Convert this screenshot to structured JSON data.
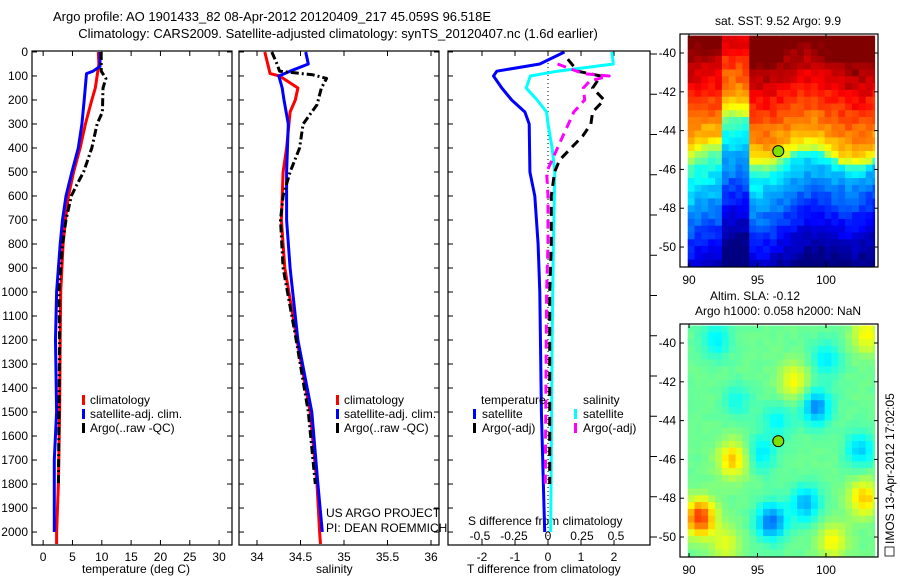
{
  "title": {
    "line1": "Argo profile: AO 1901433_82 08-Apr-2012 20120409_217 45.059S 96.518E",
    "line2": "Climatology: CARS2009. Satellite-adjusted climatology: synTS_20120407.nc (1.6d earlier)"
  },
  "credit": {
    "line1": "US ARGO PROJECT",
    "line2": "PI: DEAN ROEMMICH"
  },
  "stamp": "IMOS 13-Apr-2012 17:02:05",
  "colors": {
    "climatology": "#ff0000",
    "satellite": "#0000ff",
    "argo": "#000000",
    "sal_satellite": "#00ffff",
    "sal_argo": "#ff00ff",
    "marker": "#80e000"
  },
  "chart_data": [
    {
      "type": "line",
      "id": "temperature",
      "xlabel": "temperature (deg C)",
      "ylabel": "",
      "xlim": [
        -1.9,
        32.2
      ],
      "ylim": [
        2054,
        -4
      ],
      "xticks": [
        0,
        5,
        10,
        15,
        20,
        25,
        30
      ],
      "yticks": [
        0,
        100,
        200,
        300,
        400,
        500,
        600,
        700,
        800,
        900,
        1000,
        1100,
        1200,
        1300,
        1400,
        1500,
        1600,
        1700,
        1800,
        1900,
        2000
      ],
      "legend": [
        "climatology",
        "satellite-adj. clim.",
        "Argo(..raw -QC)"
      ],
      "series": [
        {
          "name": "climatology",
          "style": "solid",
          "color": "#ff0000",
          "depth": [
            0,
            50,
            100,
            150,
            200,
            300,
            400,
            500,
            600,
            700,
            800,
            900,
            1000,
            1200,
            1500,
            1800,
            2000,
            2050
          ],
          "value": [
            9.4,
            9.5,
            9.2,
            8.9,
            8.3,
            7.2,
            6.3,
            5.2,
            4.3,
            3.8,
            3.4,
            3.2,
            3.0,
            2.9,
            2.8,
            2.6,
            2.3,
            2.3
          ]
        },
        {
          "name": "satellite-adj. clim.",
          "style": "solid",
          "color": "#0000ff",
          "depth": [
            0,
            60,
            80,
            90,
            200,
            300,
            400,
            500,
            600,
            700,
            800,
            900,
            1000,
            1200,
            1500,
            1700,
            1900,
            2000
          ],
          "value": [
            9.7,
            9.7,
            8.5,
            7.4,
            7.0,
            6.6,
            6.0,
            4.9,
            3.9,
            3.3,
            2.9,
            2.6,
            2.3,
            2.1,
            2.3,
            1.9,
            1.9,
            1.9
          ]
        },
        {
          "name": "Argo(..raw -QC)",
          "style": "dashdot",
          "color": "#000000",
          "depth": [
            0,
            80,
            110,
            150,
            250,
            300,
            400,
            500,
            550,
            600,
            700,
            800,
            900,
            1000,
            1200,
            1500,
            1800
          ],
          "value": [
            9.9,
            9.9,
            10.7,
            10.2,
            10.1,
            9.2,
            8.3,
            6.9,
            5.8,
            4.8,
            3.9,
            3.3,
            3.0,
            2.7,
            2.8,
            2.7,
            2.6
          ]
        }
      ]
    },
    {
      "type": "line",
      "id": "salinity",
      "xlabel": "salinity",
      "xlim": [
        33.793,
        36.092
      ],
      "ylim": [
        2054,
        -4
      ],
      "xticks": [
        34,
        34.5,
        35,
        35.5,
        36
      ],
      "legend": [
        "climatology",
        "satellite-adj. clim.",
        "Argo(..raw -QC)"
      ],
      "series": [
        {
          "name": "climatology",
          "style": "solid",
          "color": "#ff0000",
          "depth": [
            0,
            90,
            100,
            150,
            200,
            250,
            400,
            500,
            700,
            900,
            1200,
            1500,
            1800,
            2000,
            2050
          ],
          "value": [
            34.09,
            34.15,
            34.26,
            34.47,
            34.44,
            34.38,
            34.34,
            34.3,
            34.28,
            34.32,
            34.46,
            34.61,
            34.69,
            34.72,
            34.73
          ]
        },
        {
          "name": "satellite-adj. clim.",
          "style": "solid",
          "color": "#0000ff",
          "depth": [
            0,
            50,
            80,
            100,
            150,
            200,
            300,
            500,
            700,
            900,
            1200,
            1500,
            1800,
            2000
          ],
          "value": [
            34.56,
            34.59,
            34.38,
            34.25,
            34.29,
            34.31,
            34.36,
            34.34,
            34.34,
            34.38,
            34.47,
            34.63,
            34.7,
            34.75
          ]
        },
        {
          "name": "Argo(..raw -QC)",
          "style": "dashdot",
          "color": "#000000",
          "depth": [
            0,
            50,
            80,
            95,
            110,
            150,
            220,
            300,
            400,
            500,
            600,
            700,
            900,
            1200,
            1500,
            1800
          ],
          "value": [
            34.17,
            34.23,
            34.26,
            34.64,
            34.8,
            34.74,
            34.69,
            34.53,
            34.49,
            34.38,
            34.3,
            34.27,
            34.3,
            34.45,
            34.59,
            34.67
          ]
        }
      ]
    },
    {
      "type": "line",
      "id": "difference",
      "xlabel": "T difference from climatology",
      "xlabel2": "S difference from climatology",
      "xlim": [
        -3.03,
        3.09
      ],
      "xlim2": [
        -0.735,
        0.75
      ],
      "ylim": [
        2054,
        -4
      ],
      "xticks": [
        -2,
        -1,
        0,
        1,
        2
      ],
      "xticks2": [
        -0.5,
        -0.25,
        0,
        0.25,
        0.5
      ],
      "legend": {
        "temperature_title": "temperature",
        "salinity_title": "salinity",
        "t_sat": "satellite",
        "t_argo": "Argo(-adj)",
        "s_sat": "satellite",
        "s_argo": "Argo(-adj)"
      },
      "series": [
        {
          "name": "temperature satellite",
          "axis": "T",
          "style": "solid",
          "color": "#0000ff",
          "depth": [
            0,
            50,
            80,
            100,
            150,
            200,
            250,
            300,
            500,
            600,
            800,
            1000,
            1500,
            2000
          ],
          "value": [
            0.5,
            -0.25,
            -1.55,
            -1.65,
            -1.4,
            -1.1,
            -0.7,
            -0.57,
            -0.55,
            -0.4,
            -0.3,
            -0.25,
            -0.2,
            -0.1
          ]
        },
        {
          "name": "salinity satellite",
          "axis": "S",
          "style": "solid",
          "color": "#00ffff",
          "depth": [
            0,
            50,
            80,
            100,
            150,
            200,
            250,
            300,
            400,
            500,
            800,
            1200,
            2000
          ],
          "value": [
            0.47,
            0.48,
            0.07,
            -0.13,
            -0.16,
            -0.08,
            -0.01,
            0,
            0.03,
            0.05,
            0.04,
            0.03,
            0.02
          ]
        },
        {
          "name": "temperature Argo(-adj)",
          "axis": "T",
          "style": "dashed",
          "color": "#000000",
          "depth": [
            30,
            80,
            100,
            150,
            200,
            250,
            300,
            350,
            400,
            450,
            500,
            600,
            800,
            1000,
            1800
          ],
          "value": [
            0.6,
            0.9,
            1.6,
            1.35,
            1.7,
            1.35,
            1.3,
            1.05,
            0.7,
            0.35,
            0.2,
            0.1,
            0.1,
            0.05,
            0.05
          ]
        },
        {
          "name": "salinity Argo(-adj)",
          "axis": "S",
          "style": "dashed",
          "color": "#ff00ff",
          "depth": [
            50,
            90,
            100,
            120,
            150,
            200,
            250,
            300,
            350,
            400,
            500,
            600,
            800,
            1000,
            1800
          ],
          "value": [
            0.07,
            0.26,
            0.45,
            0.31,
            0.26,
            0.27,
            0.19,
            0.15,
            0.11,
            0.07,
            -0.01,
            0,
            0,
            -0.01,
            -0.02
          ]
        }
      ]
    },
    {
      "type": "heatmap",
      "id": "sst_map",
      "title": "sat. SST: 9.52 Argo: 9.9",
      "xlim": [
        89.34,
        103.8
      ],
      "ylim": [
        -51.03,
        -39.02
      ],
      "xticks": [
        90,
        95,
        100
      ],
      "yticks": [
        -40,
        -42,
        -44,
        -46,
        -48,
        -50
      ],
      "marker": {
        "lon": 96.518,
        "lat": -45.059
      }
    },
    {
      "type": "heatmap",
      "id": "sla_map",
      "title": "Altim. SLA: -0.12",
      "subtitle": "Argo h1000: 0.058 h2000: NaN",
      "xlim": [
        89.34,
        103.8
      ],
      "ylim": [
        -51.03,
        -39.02
      ],
      "xticks": [
        90,
        95,
        100
      ],
      "yticks": [
        -40,
        -42,
        -44,
        -46,
        -48,
        -50
      ],
      "marker": {
        "lon": 96.518,
        "lat": -45.059
      }
    }
  ]
}
